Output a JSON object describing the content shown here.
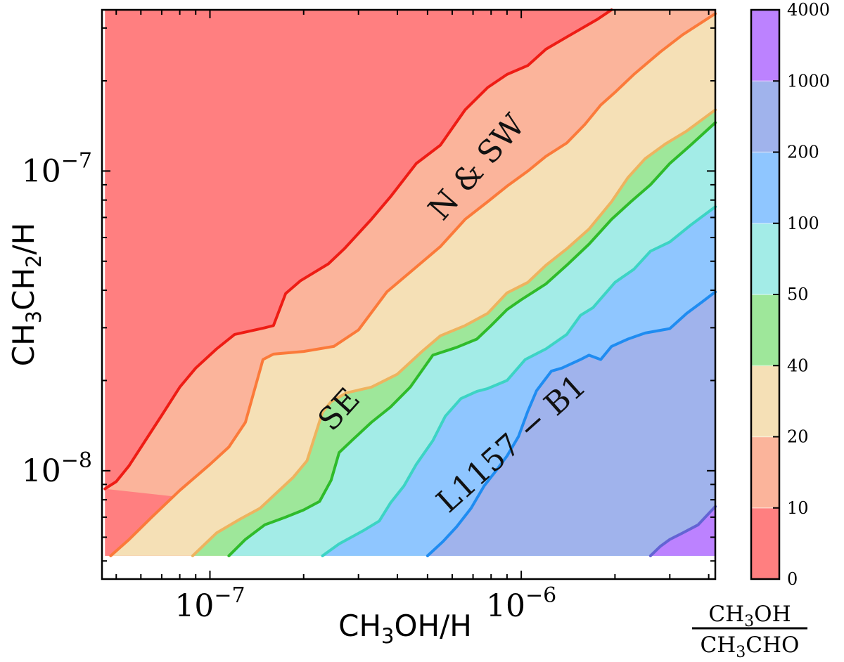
{
  "chart_data": {
    "type": "contour",
    "x": {
      "label_main": "CH",
      "label_sub": "3",
      "label_rest": "OH/H",
      "scale": "log",
      "range": [
        4.5e-08,
        4.2e-06
      ],
      "major_ticks": [
        {
          "value": 1e-07,
          "base": "10",
          "exp": "−7"
        },
        {
          "value": 1e-06,
          "base": "10",
          "exp": "−6"
        }
      ]
    },
    "y": {
      "label_a": "CH",
      "label_sub1": "3",
      "label_b": "CH",
      "label_sub2": "2",
      "label_c": "/H",
      "scale": "log",
      "range": [
        4.35e-09,
        3.45e-07
      ],
      "major_ticks": [
        {
          "value": 1e-07,
          "base": "10",
          "exp": "−7"
        },
        {
          "value": 1e-08,
          "base": "10",
          "exp": "−8"
        }
      ]
    },
    "data_extent": {
      "x": [
        4.6e-08,
        4.2e-06
      ],
      "y": [
        5.2e-09,
        3.45e-07
      ]
    },
    "colorbar": {
      "label_top": "CH",
      "label_top_sub": "3",
      "label_top_rest": "OH",
      "label_bottom": "CH",
      "label_bottom_sub": "3",
      "label_bottom_rest": "CHO",
      "ticks": [
        "0",
        "10",
        "20",
        "40",
        "50",
        "100",
        "200",
        "1000",
        "4000"
      ],
      "band_colors": [
        "#ff7f80",
        "#fbb49b",
        "#f5e0b6",
        "#9ee79a",
        "#a3ece7",
        "#8fc6ff",
        "#a0b3ec",
        "#bc82ff"
      ]
    },
    "levels": [
      {
        "value": 10,
        "line_color": "#ee1c14",
        "points": [
          [
            4.6e-08,
            8.7e-09
          ],
          [
            5e-08,
            9.2e-09
          ],
          [
            5.5e-08,
            1.04e-08
          ],
          [
            6.2e-08,
            1.26e-08
          ],
          [
            7e-08,
            1.53e-08
          ],
          [
            8e-08,
            1.9e-08
          ],
          [
            9e-08,
            2.2e-08
          ],
          [
            1.05e-07,
            2.55e-08
          ],
          [
            1.2e-07,
            2.85e-08
          ],
          [
            1.5e-07,
            3e-08
          ],
          [
            1.6e-07,
            3.05e-08
          ],
          [
            1.75e-07,
            3.9e-08
          ],
          [
            1.95e-07,
            4.3e-08
          ],
          [
            2.4e-07,
            4.9e-08
          ],
          [
            2.7e-07,
            5.5e-08
          ],
          [
            3.3e-07,
            6.9e-08
          ],
          [
            3.8e-07,
            8.2e-08
          ],
          [
            4.6e-07,
            1.06e-07
          ],
          [
            5.5e-07,
            1.22e-07
          ],
          [
            6.6e-07,
            1.6e-07
          ],
          [
            7.8e-07,
            1.9e-07
          ],
          [
            9e-07,
            2.1e-07
          ],
          [
            1.05e-06,
            2.25e-07
          ],
          [
            1.2e-06,
            2.55e-07
          ],
          [
            1.4e-06,
            2.8e-07
          ],
          [
            1.75e-06,
            3.2e-07
          ],
          [
            1.95e-06,
            3.45e-07
          ]
        ]
      },
      {
        "value": 20,
        "line_color": "#fb7a3a",
        "points": [
          [
            4.8e-08,
            5.2e-09
          ],
          [
            5.5e-08,
            5.9e-09
          ],
          [
            6.5e-08,
            7e-09
          ],
          [
            8e-08,
            8.6e-09
          ],
          [
            1e-07,
            1.05e-08
          ],
          [
            1.15e-07,
            1.2e-08
          ],
          [
            1.3e-07,
            1.45e-08
          ],
          [
            1.48e-07,
            2.35e-08
          ],
          [
            1.6e-07,
            2.45e-08
          ],
          [
            2e-07,
            2.5e-08
          ],
          [
            2.5e-07,
            2.6e-08
          ],
          [
            3e-07,
            2.95e-08
          ],
          [
            3.7e-07,
            3.95e-08
          ],
          [
            4.4e-07,
            4.6e-08
          ],
          [
            5.5e-07,
            5.6e-08
          ],
          [
            6.6e-07,
            6.9e-08
          ],
          [
            7.8e-07,
            7.9e-08
          ],
          [
            9e-07,
            8.9e-08
          ],
          [
            1.05e-06,
            1e-07
          ],
          [
            1.2e-06,
            1.12e-07
          ],
          [
            1.4e-06,
            1.24e-07
          ],
          [
            1.6e-06,
            1.43e-07
          ],
          [
            1.8e-06,
            1.66e-07
          ],
          [
            2e-06,
            1.83e-07
          ],
          [
            2.3e-06,
            2.1e-07
          ],
          [
            2.8e-06,
            2.5e-07
          ],
          [
            3.3e-06,
            2.85e-07
          ],
          [
            4.2e-06,
            3.35e-07
          ]
        ]
      },
      {
        "value": 40,
        "line_color": "#eeb35f",
        "points": [
          [
            8.8e-08,
            5.2e-09
          ],
          [
            1.05e-07,
            6.2e-09
          ],
          [
            1.25e-07,
            6.9e-09
          ],
          [
            1.45e-07,
            7.5e-09
          ],
          [
            1.65e-07,
            8.5e-09
          ],
          [
            1.85e-07,
            9.5e-09
          ],
          [
            2.05e-07,
            1.08e-08
          ],
          [
            2.15e-07,
            1.26e-08
          ],
          [
            2.3e-07,
            1.57e-08
          ],
          [
            2.45e-07,
            1.7e-08
          ],
          [
            2.75e-07,
            1.82e-08
          ],
          [
            3.3e-07,
            1.9e-08
          ],
          [
            4e-07,
            2.1e-08
          ],
          [
            4.8e-07,
            2.5e-08
          ],
          [
            5.5e-07,
            2.82e-08
          ],
          [
            6.6e-07,
            3.05e-08
          ],
          [
            7.8e-07,
            3.35e-08
          ],
          [
            9e-07,
            3.92e-08
          ],
          [
            1.05e-06,
            4.25e-08
          ],
          [
            1.2e-06,
            4.85e-08
          ],
          [
            1.4e-06,
            5.5e-08
          ],
          [
            1.65e-06,
            6.4e-08
          ],
          [
            1.95e-06,
            7.9e-08
          ],
          [
            2.2e-06,
            9.5e-08
          ],
          [
            2.5e-06,
            1.1e-07
          ],
          [
            2.9e-06,
            1.23e-07
          ],
          [
            3.4e-06,
            1.36e-07
          ],
          [
            4.2e-06,
            1.6e-07
          ]
        ]
      },
      {
        "value": 50,
        "line_color": "#2fbb2a",
        "points": [
          [
            1.15e-07,
            5.2e-09
          ],
          [
            1.3e-07,
            5.9e-09
          ],
          [
            1.5e-07,
            6.6e-09
          ],
          [
            1.75e-07,
            7e-09
          ],
          [
            2e-07,
            7.4e-09
          ],
          [
            2.25e-07,
            7.9e-09
          ],
          [
            2.45e-07,
            9.3e-09
          ],
          [
            2.6e-07,
            1.15e-08
          ],
          [
            2.9e-07,
            1.28e-08
          ],
          [
            3.3e-07,
            1.45e-08
          ],
          [
            3.8e-07,
            1.63e-08
          ],
          [
            4.4e-07,
            1.9e-08
          ],
          [
            5.2e-07,
            2.43e-08
          ],
          [
            6.2e-07,
            2.58e-08
          ],
          [
            7.2e-07,
            2.75e-08
          ],
          [
            8e-07,
            3.05e-08
          ],
          [
            9e-07,
            3.45e-08
          ],
          [
            1e-06,
            3.72e-08
          ],
          [
            1.2e-06,
            4.2e-08
          ],
          [
            1.4e-06,
            4.85e-08
          ],
          [
            1.65e-06,
            5.7e-08
          ],
          [
            1.95e-06,
            6.9e-08
          ],
          [
            2.25e-06,
            7.9e-08
          ],
          [
            2.6e-06,
            9e-08
          ],
          [
            3e-06,
            1.06e-07
          ],
          [
            3.5e-06,
            1.22e-07
          ],
          [
            4.2e-06,
            1.45e-07
          ]
        ]
      },
      {
        "value": 100,
        "line_color": "#3cd4c4",
        "points": [
          [
            2.3e-07,
            5.2e-09
          ],
          [
            2.6e-07,
            5.7e-09
          ],
          [
            3.1e-07,
            6.3e-09
          ],
          [
            3.5e-07,
            6.8e-09
          ],
          [
            3.8e-07,
            7.8e-09
          ],
          [
            4.2e-07,
            8.9e-09
          ],
          [
            4.6e-07,
            1.05e-08
          ],
          [
            5.2e-07,
            1.26e-08
          ],
          [
            5.7e-07,
            1.52e-08
          ],
          [
            6.4e-07,
            1.74e-08
          ],
          [
            7.2e-07,
            1.84e-08
          ],
          [
            7.8e-07,
            1.88e-08
          ],
          [
            9e-07,
            2e-08
          ],
          [
            1.03e-06,
            2.35e-08
          ],
          [
            1.2e-06,
            2.55e-08
          ],
          [
            1.4e-06,
            2.85e-08
          ],
          [
            1.55e-06,
            3.3e-08
          ],
          [
            1.7e-06,
            3.5e-08
          ],
          [
            2e-06,
            4.25e-08
          ],
          [
            2.3e-06,
            4.7e-08
          ],
          [
            2.6e-06,
            5.4e-08
          ],
          [
            3e-06,
            5.8e-08
          ],
          [
            3.5e-06,
            6.6e-08
          ],
          [
            4.2e-06,
            7.6e-08
          ]
        ]
      },
      {
        "value": 200,
        "line_color": "#1f8cf1",
        "points": [
          [
            5e-07,
            5.2e-09
          ],
          [
            5.6e-07,
            5.8e-09
          ],
          [
            6.2e-07,
            6.5e-09
          ],
          [
            6.9e-07,
            7.5e-09
          ],
          [
            7.6e-07,
            8.9e-09
          ],
          [
            8.3e-07,
            1e-08
          ],
          [
            9e-07,
            1.12e-08
          ],
          [
            9.8e-07,
            1.3e-08
          ],
          [
            1.05e-06,
            1.58e-08
          ],
          [
            1.12e-06,
            1.85e-08
          ],
          [
            1.25e-06,
            2.15e-08
          ],
          [
            1.35e-06,
            2.2e-08
          ],
          [
            1.55e-06,
            2.35e-08
          ],
          [
            1.65e-06,
            2.43e-08
          ],
          [
            1.8e-06,
            2.35e-08
          ],
          [
            1.95e-06,
            2.6e-08
          ],
          [
            2.2e-06,
            2.75e-08
          ],
          [
            2.5e-06,
            2.88e-08
          ],
          [
            3e-06,
            2.98e-08
          ],
          [
            3.4e-06,
            3.35e-08
          ],
          [
            3.8e-06,
            3.65e-08
          ],
          [
            4.2e-06,
            3.95e-08
          ]
        ]
      },
      {
        "value": 1000,
        "line_color": "#6364d4",
        "points": [
          [
            2.6e-06,
            5.2e-09
          ],
          [
            2.8e-06,
            5.6e-09
          ],
          [
            3e-06,
            5.9e-09
          ],
          [
            3.3e-06,
            6.2e-09
          ],
          [
            3.7e-06,
            6.6e-09
          ],
          [
            4e-06,
            7.2e-09
          ],
          [
            4.2e-06,
            7.6e-09
          ]
        ]
      }
    ],
    "annotations": [
      {
        "text": "N & SW",
        "x": 7.2e-07,
        "y": 1.03e-07,
        "angle": -49
      },
      {
        "text": "SE",
        "x": 2.6e-07,
        "y": 1.6e-08,
        "angle": -48
      },
      {
        "text": "L1157 − B1",
        "x": 9.3e-07,
        "y": 1.23e-08,
        "angle": -42
      }
    ]
  }
}
